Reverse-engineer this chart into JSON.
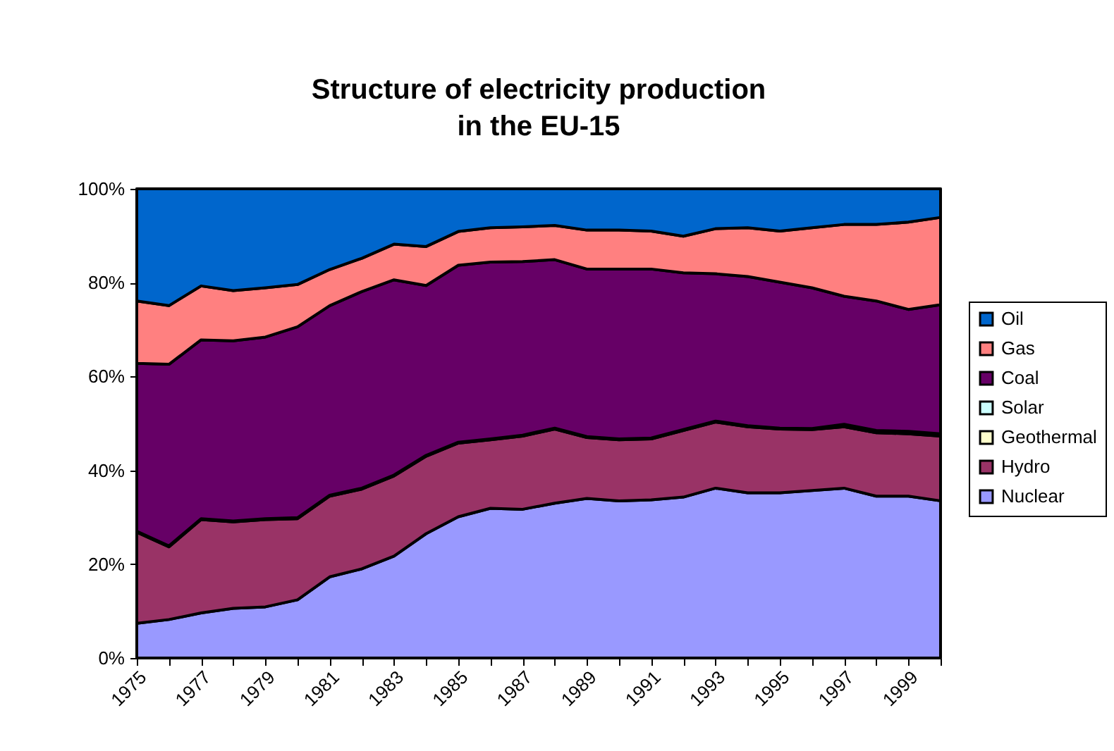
{
  "chart_data": {
    "type": "area",
    "title": "Structure of electricity production\nin the EU-15",
    "stacked": true,
    "legend": "right",
    "categories": [
      "1975",
      null,
      "1977",
      null,
      "1979",
      null,
      "1981",
      null,
      "1983",
      null,
      "1985",
      null,
      "1987",
      null,
      "1989",
      null,
      "1991",
      null,
      "1993",
      null,
      "1995",
      null,
      "1997",
      null,
      "1999",
      null
    ],
    "ylim": [
      0,
      100
    ],
    "yticks": [
      {
        "value": 0,
        "label": "0%"
      },
      {
        "value": 20,
        "label": "20%"
      },
      {
        "value": 40,
        "label": "40%"
      },
      {
        "value": 60,
        "label": "60%"
      },
      {
        "value": 80,
        "label": "80%"
      },
      {
        "value": 100,
        "label": "100%"
      }
    ],
    "series": [
      {
        "name": "Nuclear",
        "color": "#9999ff",
        "values": [
          7.4,
          8.2,
          9.6,
          10.6,
          10.9,
          12.4,
          17.3,
          19.0,
          21.7,
          26.5,
          30.1,
          31.9,
          31.7,
          33.0,
          34.0,
          33.5,
          33.7,
          34.3,
          36.2,
          35.2,
          35.2,
          35.7,
          36.2,
          34.5,
          34.5,
          33.5
        ]
      },
      {
        "name": "Hydro",
        "color": "#993366",
        "values": [
          19.4,
          15.5,
          19.9,
          18.4,
          18.6,
          17.3,
          17.2,
          17.0,
          17.1,
          16.5,
          15.7,
          14.6,
          15.6,
          15.8,
          13.0,
          13.0,
          13.0,
          14.2,
          14.1,
          14.1,
          13.6,
          13.0,
          13.1,
          13.5,
          13.3,
          13.8
        ]
      },
      {
        "name": "Geothermal",
        "color": "#ffffcc",
        "values": [
          0.2,
          0.2,
          0.2,
          0.2,
          0.2,
          0.2,
          0.2,
          0.2,
          0.2,
          0.2,
          0.2,
          0.2,
          0.2,
          0.2,
          0.2,
          0.2,
          0.2,
          0.2,
          0.2,
          0.2,
          0.2,
          0.2,
          0.5,
          0.5,
          0.5,
          0.5
        ]
      },
      {
        "name": "Solar",
        "color": "#ccffff",
        "values": [
          null,
          null,
          null,
          null,
          null,
          null,
          null,
          null,
          null,
          null,
          null,
          null,
          null,
          null,
          null,
          null,
          null,
          null,
          null,
          null,
          null,
          null,
          null,
          null,
          null,
          null
        ]
      },
      {
        "name": "Coal",
        "color": "#660066",
        "values": [
          35.8,
          38.7,
          38.1,
          38.4,
          38.7,
          40.7,
          40.4,
          41.9,
          41.6,
          36.2,
          37.7,
          37.7,
          37.0,
          35.9,
          35.7,
          36.2,
          36.0,
          33.4,
          31.4,
          31.8,
          31.1,
          30.0,
          27.3,
          27.6,
          26.0,
          27.5
        ]
      },
      {
        "name": "Gas",
        "color": "#ff8080",
        "values": [
          13.3,
          12.5,
          11.5,
          10.7,
          10.5,
          9.0,
          7.7,
          7.1,
          7.6,
          8.3,
          7.2,
          7.3,
          7.4,
          7.3,
          8.3,
          8.3,
          8.1,
          7.8,
          9.6,
          10.4,
          10.9,
          12.8,
          15.3,
          16.3,
          18.6,
          18.6
        ]
      },
      {
        "name": "Oil",
        "color": "#0066cc",
        "values": [
          23.9,
          24.9,
          20.7,
          21.7,
          21.1,
          20.4,
          17.2,
          14.8,
          11.8,
          12.3,
          9.1,
          8.3,
          8.1,
          7.8,
          8.8,
          8.8,
          9.0,
          10.1,
          8.5,
          8.3,
          9.0,
          8.3,
          7.6,
          7.6,
          7.1,
          6.1
        ]
      }
    ]
  }
}
